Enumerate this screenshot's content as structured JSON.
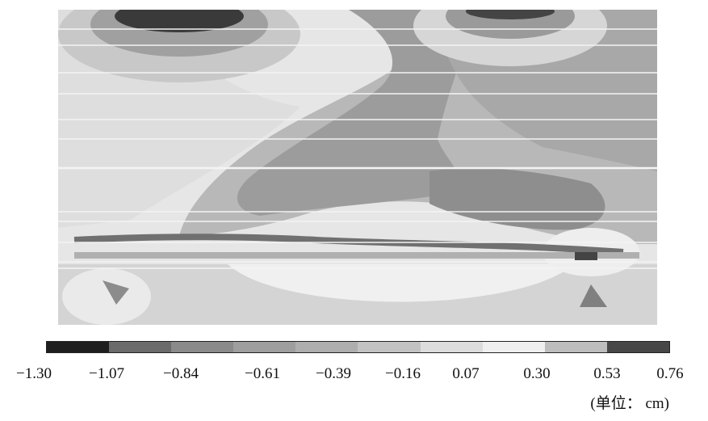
{
  "chart_data": {
    "type": "heatmap",
    "title": "",
    "colorbar": {
      "tick_labels": [
        "−1.30",
        "−1.07",
        "−0.84",
        "−0.61",
        "−0.39",
        "−0.16",
        "0.07",
        "0.30",
        "0.53",
        "0.76"
      ],
      "tick_values": [
        -1.3,
        -1.07,
        -0.84,
        -0.61,
        -0.39,
        -0.16,
        0.07,
        0.3,
        0.53,
        0.76
      ],
      "band_colors": [
        "#1e1e1e",
        "#6b6b6b",
        "#8a8a8a",
        "#9e9e9e",
        "#aeaeae",
        "#c2c2c2",
        "#dcdcdc",
        "#efefef",
        "#bdbdbd",
        "#474747"
      ],
      "range": [
        -1.3,
        0.76
      ],
      "unit_label": "(单位： cm)"
    },
    "contour_field_note_visible": false
  }
}
